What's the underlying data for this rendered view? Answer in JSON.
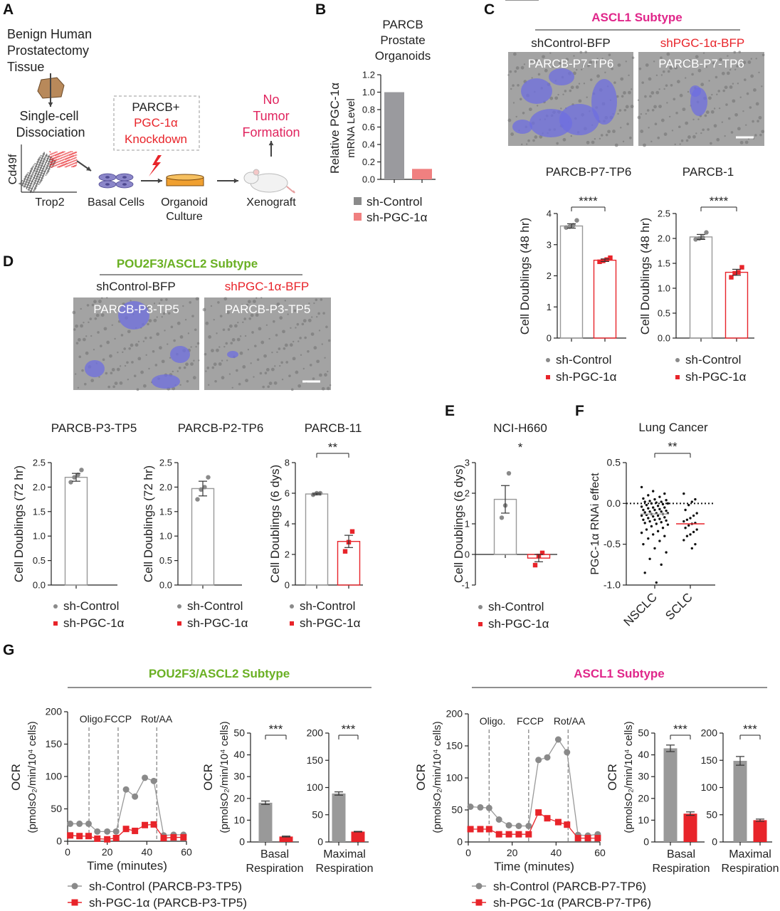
{
  "colors": {
    "control": "#8a8a8a",
    "knockdown": "#e8242a",
    "knockdown_light": "#f08080",
    "ascl1": "#e0268a",
    "pou2f3": "#6ab023",
    "red_text": "#e8242a",
    "pink_text": "#e0245e"
  },
  "legend": {
    "control": "sh-Control",
    "knockdown": "sh-PGC-1α"
  },
  "panelA": {
    "letter": "A",
    "tissue": [
      "Benign Human",
      "Prostatectomy",
      "Tissue"
    ],
    "dissociation": [
      "Single-cell",
      "Dissociation"
    ],
    "facs_y": "Cd49f",
    "facs_x": "Trop2",
    "basal": "Basal Cells",
    "knockdown": [
      "PARCB+",
      "PGC-1α",
      "Knockdown"
    ],
    "organoid": [
      "Organoid",
      "Culture"
    ],
    "xenograft": "Xenograft",
    "outcome": [
      "No",
      "Tumor",
      "Formation"
    ]
  },
  "panelB": {
    "letter": "B"
  },
  "panelC": {
    "letter": "C",
    "subtype": "ASCL1 Subtype",
    "left_condition": "shControl-BFP",
    "right_condition": "shPGC-1α-BFP",
    "image_label": "PARCB-P7-TP6"
  },
  "panelD": {
    "letter": "D",
    "subtype": "POU2F3/ASCL2 Subtype",
    "left_condition": "shControl-BFP",
    "right_condition": "shPGC-1α-BFP",
    "image_label": "PARCB-P3-TP5"
  },
  "panelE": {
    "letter": "E"
  },
  "panelF": {
    "letter": "F"
  },
  "panelG": {
    "letter": "G",
    "left_subtype": "POU2F3/ASCL2 Subtype",
    "right_subtype": "ASCL1 Subtype"
  },
  "chart_data": [
    {
      "id": "B",
      "type": "bar",
      "title": [
        "PARCB",
        "Prostate",
        "Organoids"
      ],
      "ylabel": [
        "Relative PGC-1α",
        "mRNA Level"
      ],
      "categories": [
        "sh-Control",
        "sh-PGC-1α"
      ],
      "values": [
        1.0,
        0.12
      ],
      "ylim": [
        0,
        1.2
      ],
      "yticks": [
        "0.0",
        "0.2",
        "0.4",
        "0.6",
        "0.8",
        "1.0",
        "1.2"
      ]
    },
    {
      "id": "C1",
      "type": "bar",
      "title": "PARCB-P7-TP6",
      "ylabel": "Cell  Doublings (48 hr)",
      "categories": [
        "sh-Control",
        "sh-PGC-1α"
      ],
      "values": [
        3.6,
        2.5
      ],
      "errors": [
        0.07,
        0.04
      ],
      "points": [
        [
          3.55,
          3.58,
          3.62,
          3.78
        ],
        [
          2.45,
          2.48,
          2.52,
          2.58
        ]
      ],
      "ylim": [
        0,
        4
      ],
      "yticks": [
        "0",
        "1",
        "2",
        "3",
        "4"
      ],
      "significance": "****"
    },
    {
      "id": "C2",
      "type": "bar",
      "title": "PARCB-1",
      "ylabel": "Cell  Doublings (48 hr)",
      "categories": [
        "sh-Control",
        "sh-PGC-1α"
      ],
      "values": [
        2.03,
        1.32
      ],
      "errors": [
        0.05,
        0.06
      ],
      "points": [
        [
          1.98,
          2.0,
          2.02,
          2.12
        ],
        [
          1.22,
          1.3,
          1.32,
          1.42
        ]
      ],
      "ylim": [
        0,
        2.5
      ],
      "yticks": [
        "0.0",
        "0.5",
        "1.0",
        "1.5",
        "2.0",
        "2.5"
      ],
      "significance": "****"
    },
    {
      "id": "D1",
      "type": "bar",
      "title": "PARCB-P3-TP5",
      "ylabel": "Cell  Doublings (72 hr)",
      "categories": [
        "sh-Control"
      ],
      "values": [
        2.2
      ],
      "errors": [
        0.08
      ],
      "points": [
        [
          2.1,
          2.2,
          2.25,
          2.35
        ]
      ],
      "ylim": [
        0,
        2.5
      ],
      "yticks": [
        "0.0",
        "0.5",
        "1.0",
        "1.5",
        "2.0",
        "2.5"
      ]
    },
    {
      "id": "D2",
      "type": "bar",
      "title": "PARCB-P2-TP6",
      "ylabel": "Cell  Doublings (72 hr)",
      "categories": [
        "sh-Control"
      ],
      "values": [
        1.97
      ],
      "errors": [
        0.15
      ],
      "points": [
        [
          1.75,
          1.95,
          2.0,
          2.2
        ]
      ],
      "ylim": [
        0,
        2.5
      ],
      "yticks": [
        "0.0",
        "0.5",
        "1.0",
        "1.5",
        "2.0",
        "2.5"
      ]
    },
    {
      "id": "D3",
      "type": "bar",
      "title": "PARCB-11",
      "ylabel": "Cell  Doublings (6 dys)",
      "categories": [
        "sh-Control",
        "sh-PGC-1α"
      ],
      "values": [
        5.95,
        2.85
      ],
      "errors": [
        0.05,
        0.4
      ],
      "points": [
        [
          5.9,
          6.0,
          6.0
        ],
        [
          2.2,
          2.8,
          3.5
        ]
      ],
      "ylim": [
        0,
        8
      ],
      "yticks": [
        "0",
        "2",
        "4",
        "6",
        "8"
      ],
      "significance": "**"
    },
    {
      "id": "E",
      "type": "bar",
      "title": "NCI-H660",
      "ylabel": "Cell  Doublings (6 dys)",
      "categories": [
        "sh-Control",
        "sh-PGC-1α"
      ],
      "values": [
        1.8,
        -0.12
      ],
      "errors": [
        0.45,
        0.12
      ],
      "points": [
        [
          1.2,
          1.6,
          2.65
        ],
        [
          -0.35,
          -0.05,
          0.05
        ]
      ],
      "ylim": [
        -1,
        3
      ],
      "yticks": [
        "-1",
        "0",
        "1",
        "2",
        "3"
      ],
      "significance": "*"
    },
    {
      "id": "F",
      "type": "scatter",
      "title": "Lung Cancer",
      "ylabel": "PGC-1α RNAi effect",
      "categories": [
        "NSCLC",
        "SCLC"
      ],
      "ylim": [
        -1,
        0.5
      ],
      "yticks": [
        "-1.0",
        "-0.5",
        "0.0",
        "0.5"
      ],
      "medians": [
        -0.13,
        -0.25
      ],
      "significance": "**",
      "groups": [
        [
          0.2,
          0.15,
          0.12,
          0.1,
          0.08,
          0.06,
          0.05,
          0.04,
          0.03,
          0.02,
          0.02,
          0.01,
          0.0,
          0.0,
          -0.01,
          -0.02,
          -0.03,
          -0.04,
          -0.05,
          -0.05,
          -0.06,
          -0.07,
          -0.08,
          -0.08,
          -0.09,
          -0.1,
          -0.1,
          -0.11,
          -0.12,
          -0.12,
          -0.13,
          -0.13,
          -0.14,
          -0.15,
          -0.15,
          -0.16,
          -0.17,
          -0.18,
          -0.19,
          -0.2,
          -0.2,
          -0.21,
          -0.22,
          -0.23,
          -0.24,
          -0.25,
          -0.26,
          -0.28,
          -0.3,
          -0.32,
          -0.34,
          -0.36,
          -0.38,
          -0.4,
          -0.43,
          -0.46,
          -0.5,
          -0.55,
          -0.6,
          -0.68,
          -0.75,
          -0.85,
          -0.97
        ],
        [
          0.12,
          0.05,
          0.02,
          -0.02,
          -0.08,
          -0.12,
          -0.15,
          -0.18,
          -0.2,
          -0.22,
          -0.24,
          -0.25,
          -0.27,
          -0.3,
          -0.32,
          -0.35,
          -0.38,
          -0.4,
          -0.45,
          -0.5,
          -0.55
        ]
      ]
    },
    {
      "id": "G1",
      "type": "line",
      "xlabel": "Time (minutes)",
      "ylabel": [
        "OCR",
        "(pmolsO₂/min/10⁴ cells)"
      ],
      "xlim": [
        0,
        60
      ],
      "xticks": [
        "0",
        "20",
        "40",
        "60"
      ],
      "ylim": [
        0,
        200
      ],
      "yticks": [
        "0",
        "50",
        "100",
        "150",
        "200"
      ],
      "injections": [
        {
          "label": "Oligo.",
          "x": 10.8
        },
        {
          "label": "FCCP",
          "x": 25.5
        },
        {
          "label": "Rot/AA",
          "x": 45
        }
      ],
      "x": [
        1.3,
        6,
        10.6,
        15,
        20,
        24.5,
        29.5,
        34,
        39,
        43.5,
        48.5,
        53.5,
        58.5
      ],
      "series": [
        {
          "name": "sh-Control (PARCB-P3-TP5)",
          "values": [
            27,
            27,
            27,
            15,
            15,
            15,
            80,
            69,
            98,
            93,
            9,
            10,
            10
          ]
        },
        {
          "name": "sh-PGC-1α (PARCB-P3-TP5)",
          "values": [
            9,
            8,
            8,
            4,
            3,
            5,
            19,
            16,
            25,
            26,
            5,
            6,
            6
          ]
        }
      ]
    },
    {
      "id": "G1b",
      "type": "bar",
      "ylabel": [
        "OCR",
        "(pmolsO₂/min/10⁴ cells)"
      ],
      "xlabel": [
        "Basal",
        "Respiration"
      ],
      "values": [
        18,
        2.5
      ],
      "errors": [
        0.8,
        0.2
      ],
      "ylim": [
        0,
        50
      ],
      "yticks": [
        "0",
        "10",
        "20",
        "30",
        "40",
        "50"
      ],
      "significance": "***"
    },
    {
      "id": "G1m",
      "type": "bar",
      "xlabel": [
        "Maximal",
        "Respiration"
      ],
      "values": [
        89,
        19
      ],
      "errors": [
        3,
        0.5
      ],
      "ylim": [
        0,
        200
      ],
      "yticks": [
        "0",
        "50",
        "100",
        "150",
        "200"
      ],
      "significance": "***"
    },
    {
      "id": "G2",
      "type": "line",
      "xlabel": "Time (minutes)",
      "ylabel": [
        "OCR",
        "(pmolsO₂/min/10⁴ cells)"
      ],
      "xlim": [
        0,
        60
      ],
      "xticks": [
        "0",
        "20",
        "40",
        "60"
      ],
      "ylim": [
        0,
        200
      ],
      "yticks": [
        "0",
        "50",
        "100",
        "150",
        "200"
      ],
      "injections": [
        {
          "label": "Oligo.",
          "x": 9.5
        },
        {
          "label": "FCCP",
          "x": 27.5
        },
        {
          "label": "Rot/AA",
          "x": 45.5
        }
      ],
      "x": [
        1,
        5.5,
        9.5,
        14,
        18.5,
        23,
        27.5,
        32,
        36,
        41,
        45,
        50,
        54.5,
        59
      ],
      "series": [
        {
          "name": "sh-Control (PARCB-P7-TP6)",
          "values": [
            55,
            54,
            53,
            35,
            26,
            25,
            25,
            128,
            132,
            160,
            140,
            11,
            10,
            12
          ]
        },
        {
          "name": "sh-PGC-1α (PARCB-P7-TP6)",
          "values": [
            20,
            20,
            20,
            12,
            12,
            12,
            12,
            46,
            37,
            31,
            27,
            6,
            6,
            6
          ]
        }
      ]
    },
    {
      "id": "G2b",
      "type": "bar",
      "ylabel": [
        "OCR",
        "(pmolsO₂/min/10⁴ cells)"
      ],
      "xlabel": [
        "Basal",
        "Respiration"
      ],
      "values": [
        43,
        13
      ],
      "errors": [
        1.5,
        0.8
      ],
      "ylim": [
        0,
        50
      ],
      "yticks": [
        "0",
        "10",
        "20",
        "30",
        "40",
        "50"
      ],
      "significance": "***"
    },
    {
      "id": "G2m",
      "type": "bar",
      "xlabel": [
        "Maximal",
        "Respiration"
      ],
      "values": [
        149,
        40
      ],
      "errors": [
        8,
        2
      ],
      "ylim": [
        0,
        200
      ],
      "yticks": [
        "0",
        "50",
        "100",
        "150",
        "200"
      ],
      "significance": "***"
    }
  ]
}
